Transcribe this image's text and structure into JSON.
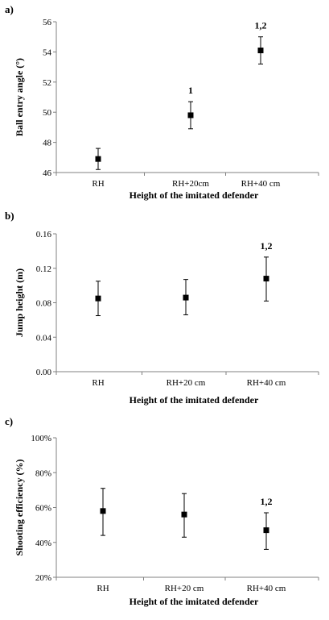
{
  "chart_data": [
    {
      "type": "scatter",
      "panel_label": "a)",
      "title": "",
      "xlabel": "Height of the imitated defender",
      "ylabel": "Ball entry angle (°)",
      "categories": [
        "RH",
        "RH+20cm",
        "RH+40 cm"
      ],
      "values": [
        46.9,
        49.8,
        54.1
      ],
      "error_low": [
        46.2,
        48.9,
        53.2
      ],
      "error_high": [
        47.6,
        50.7,
        55.0
      ],
      "annotations": [
        "",
        "1",
        "1,2"
      ],
      "ylim": [
        46,
        56
      ],
      "yticks": [
        46,
        48,
        50,
        52,
        54,
        56
      ],
      "ytick_labels": [
        "46",
        "48",
        "50",
        "52",
        "54",
        "56"
      ],
      "grid": false,
      "marker_color": "#000000"
    },
    {
      "type": "scatter",
      "panel_label": "b)",
      "title": "",
      "xlabel": "Height of the imitated defender",
      "ylabel": "Jump height (m)",
      "categories": [
        "RH",
        "RH+20 cm",
        "RH+40 cm"
      ],
      "values": [
        0.085,
        0.086,
        0.108
      ],
      "error_low": [
        0.065,
        0.066,
        0.082
      ],
      "error_high": [
        0.105,
        0.107,
        0.133
      ],
      "annotations": [
        "",
        "",
        "1,2"
      ],
      "ylim": [
        0,
        0.16
      ],
      "yticks": [
        0,
        0.04,
        0.08,
        0.12,
        0.16
      ],
      "ytick_labels": [
        "0.00",
        "0.04",
        "0.08",
        "0.12",
        "0.16"
      ],
      "grid": false,
      "marker_color": "#000000"
    },
    {
      "type": "scatter",
      "panel_label": "c)",
      "title": "",
      "xlabel": "Height of the imitated defender",
      "ylabel": "Shooting efficiency (%)",
      "categories": [
        "RH",
        "RH+20 cm",
        "RH+40 cm"
      ],
      "values": [
        58,
        56,
        47
      ],
      "error_low": [
        44,
        43,
        36
      ],
      "error_high": [
        71,
        68,
        57
      ],
      "annotations": [
        "",
        "",
        "1,2"
      ],
      "ylim": [
        20,
        100
      ],
      "yticks": [
        20,
        40,
        60,
        80,
        100
      ],
      "ytick_labels": [
        "20%",
        "40%",
        "60%",
        "80%",
        "100%"
      ],
      "grid": false,
      "marker_color": "#000000"
    }
  ]
}
